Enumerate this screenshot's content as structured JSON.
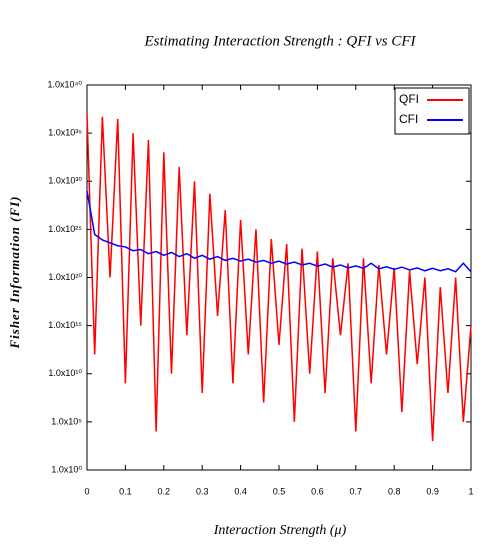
{
  "chart_data": {
    "type": "line",
    "title": "Estimating Interaction Strength : QFI vs CFI",
    "x_label": "Interaction Strength (μ)",
    "y_label": "Fisher Information (FI)",
    "y_log": true,
    "grid": false,
    "legend": "upper right",
    "x": [
      0,
      0.02,
      0.04,
      0.06,
      0.08,
      0.1,
      0.12,
      0.14,
      0.16,
      0.18,
      0.2,
      0.22,
      0.24,
      0.26,
      0.28,
      0.3,
      0.32,
      0.34,
      0.36,
      0.38,
      0.4,
      0.42,
      0.44,
      0.46,
      0.48,
      0.5,
      0.52,
      0.54,
      0.56,
      0.58,
      0.6,
      0.62,
      0.64,
      0.66,
      0.68,
      0.7,
      0.72,
      0.74,
      0.76,
      0.78,
      0.8,
      0.82,
      0.84,
      0.86,
      0.88,
      0.9,
      0.92,
      0.94,
      0.96,
      0.98,
      1
    ],
    "series": [
      {
        "name": "QFI",
        "color": "#ff0000",
        "values": [
          1e+37,
          1000000000000.0,
          5e+36,
          1e+20,
          3e+36,
          1000000000.0,
          1e+35,
          1000000000000000.0,
          2e+34,
          10000.0,
          1e+33,
          10000000000.0,
          3e+31,
          100000000000000.0,
          1e+30,
          100000000.0,
          5e+28,
          1e+16,
          1e+27,
          1000000000.0,
          1e+26,
          1000000000000.0,
          1e+25,
          10000000.0,
          1e+24,
          10000000000000.0,
          3e+23,
          100000.0,
          1e+23,
          10000000000.0,
          5e+22,
          100000000.0,
          1e+22,
          100000000000000.0,
          3e+21,
          10000.0,
          1e+22,
          1000000000.0,
          2e+21,
          1000000000000.0,
          1e+21,
          1000000.0,
          5e+20,
          100000000000.0,
          1e+20,
          1000.0,
          1e+19,
          100000000.0,
          1e+20,
          100000.0,
          1000000000000000.0
        ]
      },
      {
        "name": "CFI",
        "color": "#0000ff",
        "values": [
          1e+29,
          3e+24,
          8e+23,
          4e+23,
          2e+23,
          1.5e+23,
          6e+22,
          8e+22,
          3e+22,
          5e+22,
          2e+22,
          4e+22,
          1.5e+22,
          3e+22,
          1e+22,
          2e+22,
          8e+21,
          1.5e+22,
          6e+21,
          1e+22,
          5e+21,
          8e+21,
          4e+21,
          6e+21,
          3e+21,
          5e+21,
          2.5e+21,
          4e+21,
          2e+21,
          3e+21,
          1.5e+21,
          2.5e+21,
          1.2e+21,
          2e+21,
          1e+21,
          1.6e+21,
          9e+20,
          3e+21,
          8e+20,
          1.3e+21,
          7e+20,
          1.2e+21,
          6e+20,
          1e+21,
          5e+20,
          9e+20,
          5e+20,
          8e+20,
          4e+20,
          3e+21,
          4e+20
        ]
      }
    ],
    "xlim": [
      0,
      1
    ],
    "xticks": [
      0,
      0.1,
      0.2,
      0.3,
      0.4,
      0.5,
      0.6,
      0.7,
      0.8,
      0.9,
      1
    ],
    "ylim": [
      1,
      1e+40
    ],
    "yticks": [
      {
        "value": 1,
        "label": "1.0x10⁰"
      },
      {
        "value": 100000.0,
        "label": "1.0x10⁵"
      },
      {
        "value": 10000000000.0,
        "label": "1.0x10¹⁰"
      },
      {
        "value": 1000000000000000.0,
        "label": "1.0x10¹⁵"
      },
      {
        "value": 1e+20,
        "label": "1.0x10²⁰"
      },
      {
        "value": 1e+25,
        "label": "1.0x10²⁵"
      },
      {
        "value": 1e+30,
        "label": "1.0x10³⁰"
      },
      {
        "value": 1e+35,
        "label": "1.0x10³⁵"
      },
      {
        "value": 1e+40,
        "label": "1.0x10⁴⁰"
      }
    ]
  }
}
